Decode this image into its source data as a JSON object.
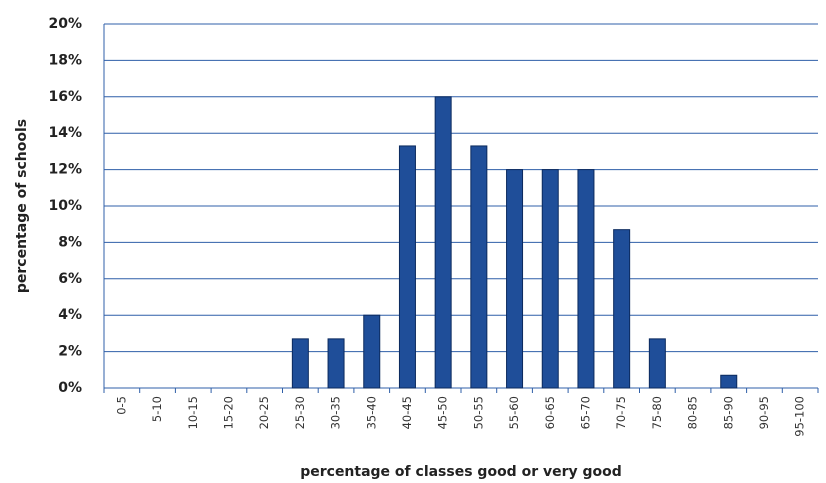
{
  "chart_data": {
    "type": "bar",
    "x_label": "percentage of classes good or very good",
    "y_label": "percentage of schools",
    "categories": [
      "0-5",
      "5-10",
      "10-15",
      "15-20",
      "20-25",
      "25-30",
      "30-35",
      "35-40",
      "40-45",
      "45-50",
      "50-55",
      "55-60",
      "60-65",
      "65-70",
      "70-75",
      "75-80",
      "80-85",
      "85-90",
      "90-95",
      "95-100"
    ],
    "values": [
      0,
      0,
      0,
      0,
      0,
      2.7,
      2.7,
      4,
      13.3,
      16,
      13.3,
      12,
      12,
      12,
      8.7,
      2.7,
      0,
      0.7,
      0,
      0
    ],
    "color": "#1f4e99",
    "ylim": [
      0,
      20
    ],
    "yticks": [
      {
        "value": 0,
        "label": "0%"
      },
      {
        "value": 2,
        "label": "2%"
      },
      {
        "value": 4,
        "label": "4%"
      },
      {
        "value": 6,
        "label": "6%"
      },
      {
        "value": 8,
        "label": "8%"
      },
      {
        "value": 10,
        "label": "10%"
      },
      {
        "value": 12,
        "label": "12%"
      },
      {
        "value": 14,
        "label": "14%"
      },
      {
        "value": 16,
        "label": "16%"
      },
      {
        "value": 18,
        "label": "18%"
      },
      {
        "value": 20,
        "label": "20%"
      }
    ],
    "grid": true
  }
}
